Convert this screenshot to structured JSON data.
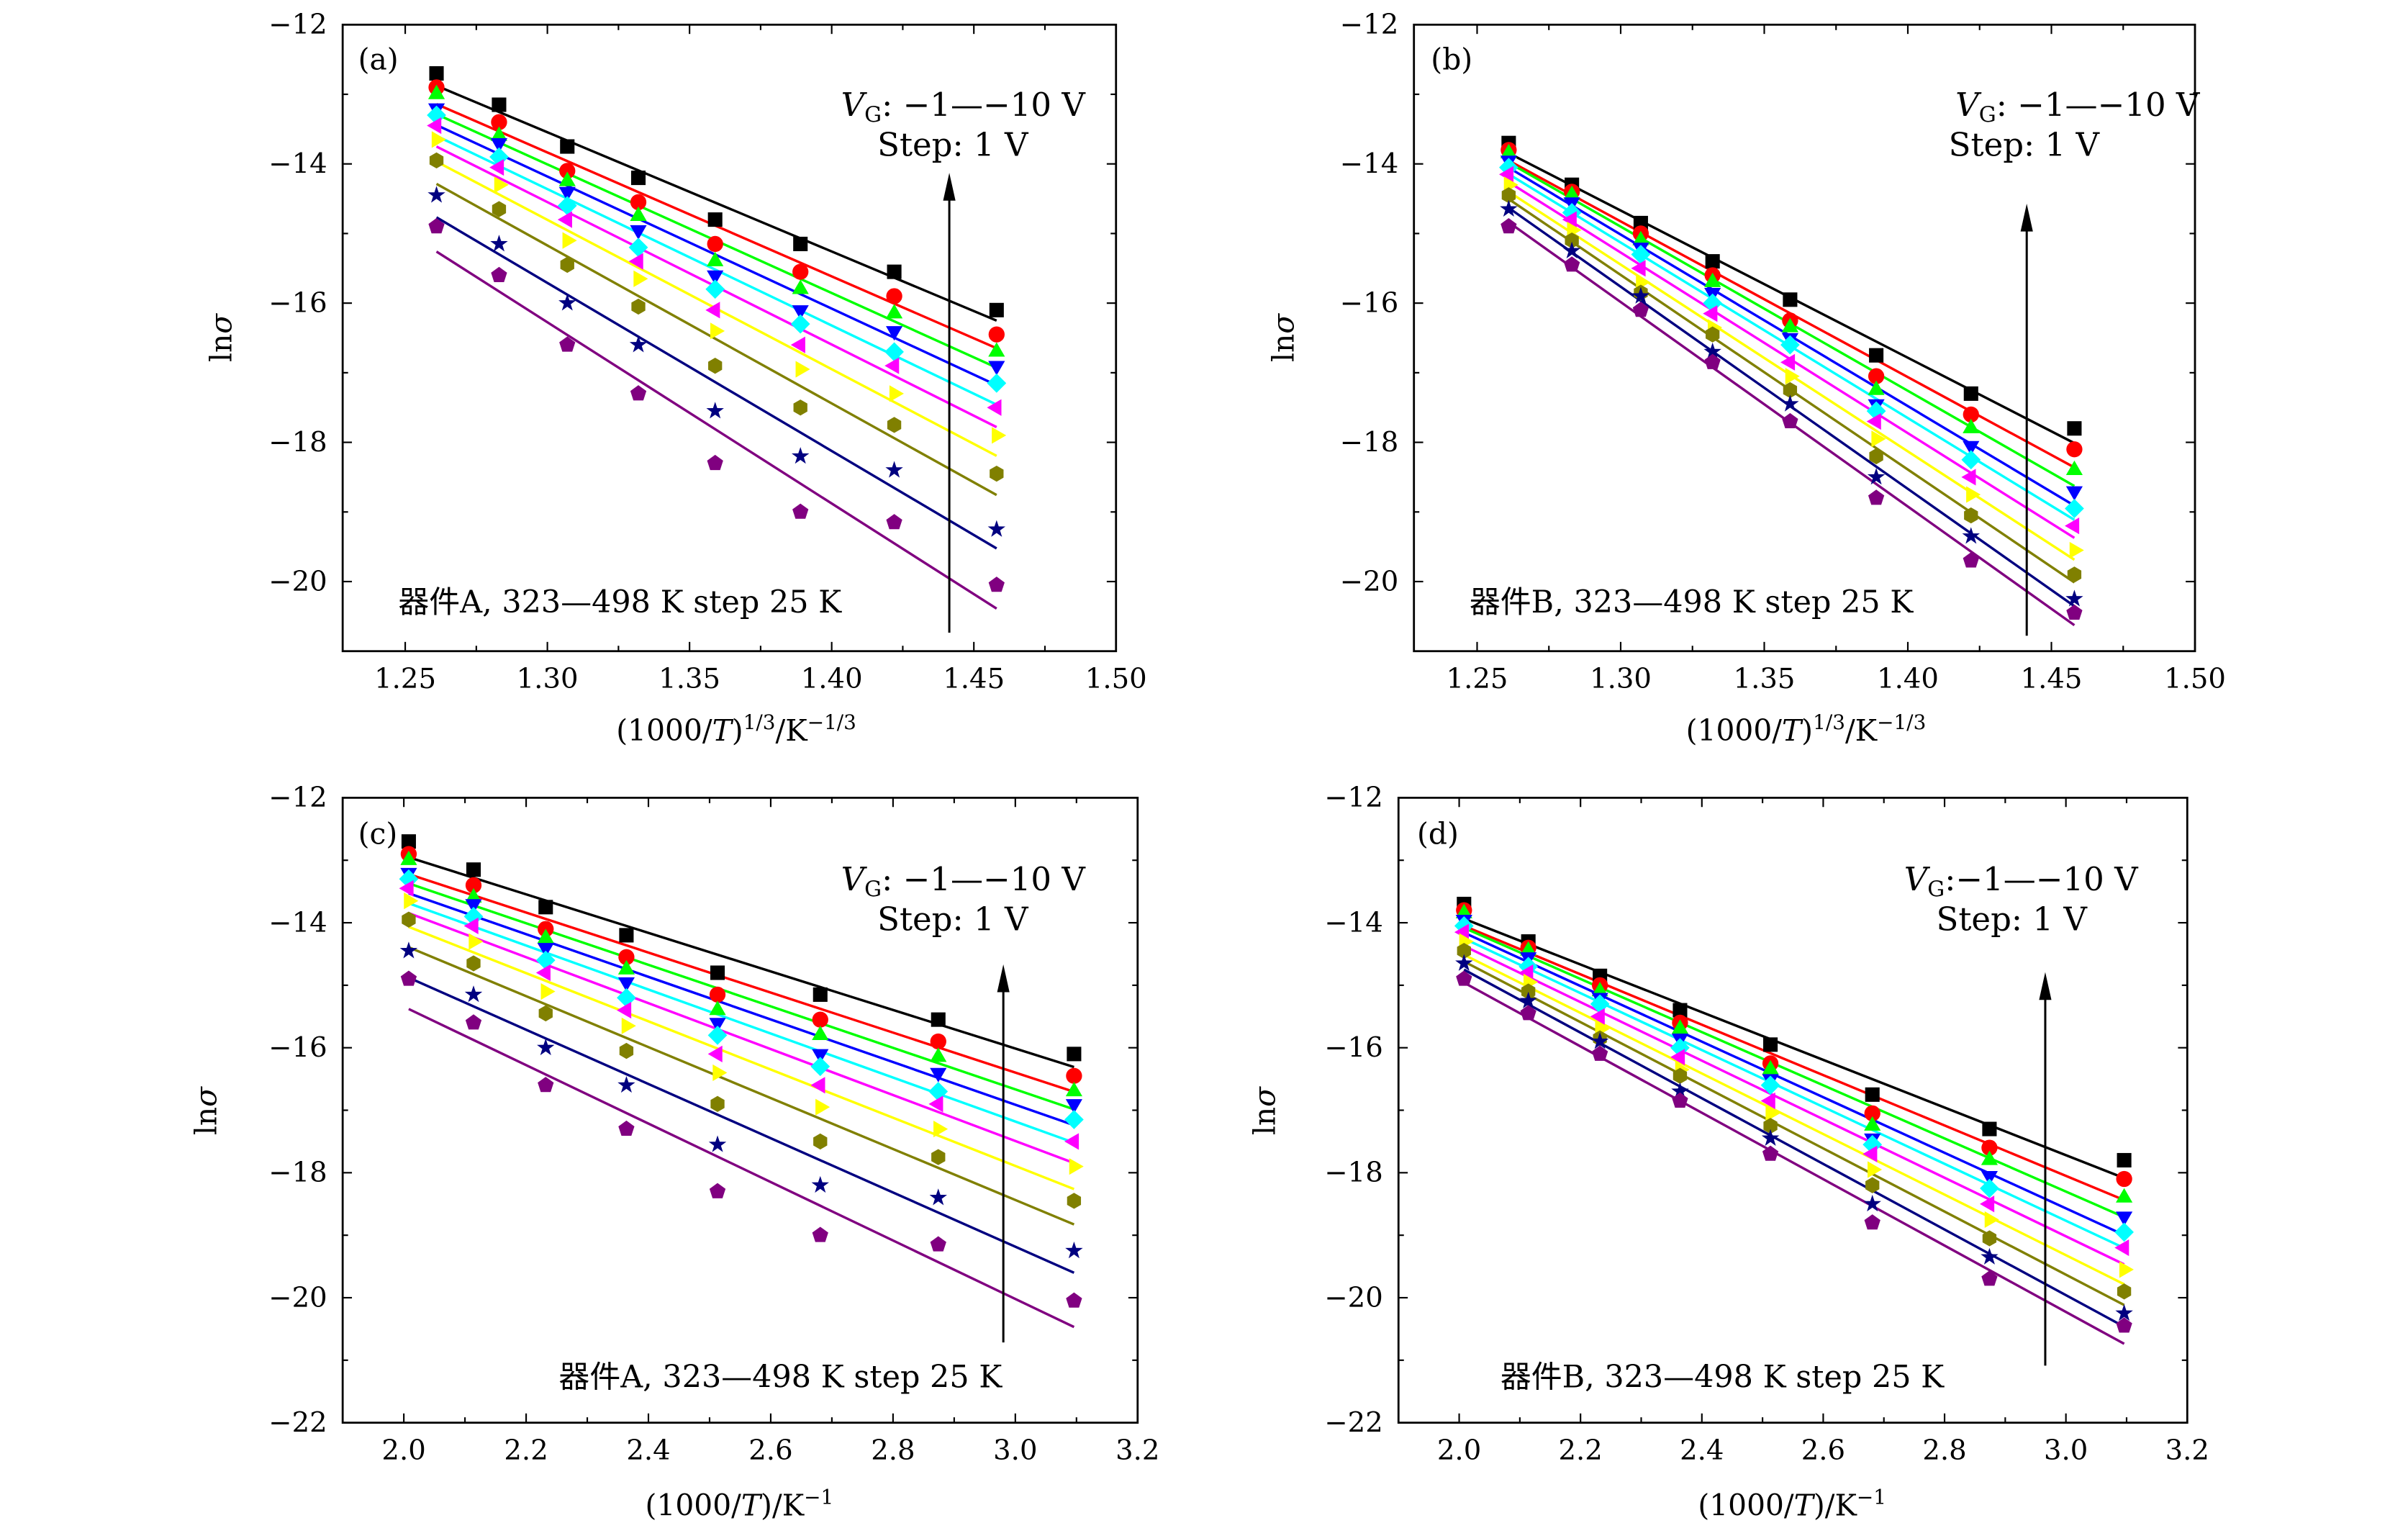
{
  "chart_data": [
    {
      "panel_label": "(a)",
      "type": "scatter",
      "fit": "linear",
      "ylabel": {
        "main": "ln",
        "italic": "σ"
      },
      "xlabel": {
        "pre": "(1000/",
        "italic": "T",
        "mid": ")",
        "sup1": "1/3",
        "post": "/K",
        "sup2": "−1/3"
      },
      "xlim": [
        1.228,
        1.5
      ],
      "ylim": [
        -21,
        -12
      ],
      "xticks": [
        1.25,
        1.3,
        1.35,
        1.4,
        1.45,
        1.5
      ],
      "xtick_labels": [
        "1.25",
        "1.30",
        "1.35",
        "1.40",
        "1.45",
        "1.50"
      ],
      "yticks": [
        -12,
        -14,
        -16,
        -18,
        -20
      ],
      "ytick_labels": [
        "−12",
        "−14",
        "−16",
        "−18",
        "−20"
      ],
      "annotation_vg": {
        "v": "V",
        "sub": "G",
        "rest": ": −1—−10 V"
      },
      "annotation_step": "Step: 1 V",
      "annotation_device": "器件A, 323—498 K step 25 K",
      "x": [
        1.261,
        1.283,
        1.307,
        1.332,
        1.359,
        1.389,
        1.422,
        1.458
      ],
      "series": [
        {
          "marker": "square",
          "color": "#000000",
          "values": [
            -12.7,
            -13.15,
            -13.75,
            -14.2,
            -14.8,
            -15.15,
            -15.55,
            -16.1
          ]
        },
        {
          "marker": "circle",
          "color": "#ff0000",
          "values": [
            -12.9,
            -13.4,
            -14.1,
            -14.55,
            -15.15,
            -15.55,
            -15.9,
            -16.45
          ]
        },
        {
          "marker": "triangle-up",
          "color": "#00ff00",
          "values": [
            -13.0,
            -13.6,
            -14.25,
            -14.75,
            -15.4,
            -15.8,
            -16.15,
            -16.7
          ]
        },
        {
          "marker": "triangle-down",
          "color": "#0000ff",
          "values": [
            -13.2,
            -13.7,
            -14.4,
            -14.95,
            -15.6,
            -16.1,
            -16.4,
            -16.9
          ]
        },
        {
          "marker": "diamond",
          "color": "#00ffff",
          "values": [
            -13.3,
            -13.9,
            -14.6,
            -15.2,
            -15.8,
            -16.3,
            -16.7,
            -17.15
          ]
        },
        {
          "marker": "triangle-left",
          "color": "#ff00ff",
          "values": [
            -13.45,
            -14.05,
            -14.8,
            -15.4,
            -16.1,
            -16.6,
            -16.9,
            -17.5
          ]
        },
        {
          "marker": "triangle-right",
          "color": "#ffff00",
          "values": [
            -13.65,
            -14.3,
            -15.1,
            -15.65,
            -16.4,
            -16.95,
            -17.3,
            -17.9
          ]
        },
        {
          "marker": "hexagon",
          "color": "#808000",
          "values": [
            -13.95,
            -14.65,
            -15.45,
            -16.05,
            -16.9,
            -17.5,
            -17.75,
            -18.45
          ]
        },
        {
          "marker": "star",
          "color": "#000080",
          "values": [
            -14.45,
            -15.15,
            -16.0,
            -16.6,
            -17.55,
            -18.2,
            -18.4,
            -19.25
          ]
        },
        {
          "marker": "pentagon",
          "color": "#800080",
          "values": [
            -14.9,
            -15.6,
            -16.6,
            -17.3,
            -18.3,
            -19.0,
            -19.15,
            -20.05
          ]
        }
      ]
    },
    {
      "panel_label": "(b)",
      "type": "scatter",
      "fit": "linear",
      "ylabel": {
        "main": "ln",
        "italic": "σ"
      },
      "xlabel": {
        "pre": "(1000/",
        "italic": "T",
        "mid": ")",
        "sup1": "1/3",
        "post": "/K",
        "sup2": "−1/3"
      },
      "xlim": [
        1.228,
        1.5
      ],
      "ylim": [
        -21,
        -12
      ],
      "xticks": [
        1.25,
        1.3,
        1.35,
        1.4,
        1.45,
        1.5
      ],
      "xtick_labels": [
        "1.25",
        "1.30",
        "1.35",
        "1.40",
        "1.45",
        "1.50"
      ],
      "yticks": [
        -12,
        -14,
        -16,
        -18,
        -20
      ],
      "ytick_labels": [
        "−12",
        "−14",
        "−16",
        "−18",
        "−20"
      ],
      "annotation_vg": {
        "v": "V",
        "sub": "G",
        "rest": ": −1—−10 V"
      },
      "annotation_step": "Step: 1 V",
      "annotation_device": "器件B, 323—498 K step 25 K",
      "x": [
        1.261,
        1.283,
        1.307,
        1.332,
        1.359,
        1.389,
        1.422,
        1.458
      ],
      "series": [
        {
          "marker": "square",
          "color": "#000000",
          "values": [
            -13.7,
            -14.3,
            -14.85,
            -15.4,
            -15.95,
            -16.75,
            -17.3,
            -17.8
          ]
        },
        {
          "marker": "circle",
          "color": "#ff0000",
          "values": [
            -13.8,
            -14.4,
            -15.0,
            -15.6,
            -16.25,
            -17.05,
            -17.6,
            -18.1
          ]
        },
        {
          "marker": "triangle-up",
          "color": "#00ff00",
          "values": [
            -13.85,
            -14.45,
            -15.1,
            -15.7,
            -16.35,
            -17.25,
            -17.8,
            -18.4
          ]
        },
        {
          "marker": "triangle-down",
          "color": "#0000ff",
          "values": [
            -13.95,
            -14.55,
            -15.2,
            -15.85,
            -16.5,
            -17.45,
            -18.05,
            -18.7
          ]
        },
        {
          "marker": "diamond",
          "color": "#00ffff",
          "values": [
            -14.05,
            -14.7,
            -15.3,
            -16.0,
            -16.6,
            -17.55,
            -18.25,
            -18.95
          ]
        },
        {
          "marker": "triangle-left",
          "color": "#ff00ff",
          "values": [
            -14.15,
            -14.8,
            -15.5,
            -16.15,
            -16.85,
            -17.7,
            -18.5,
            -19.2
          ]
        },
        {
          "marker": "triangle-right",
          "color": "#ffff00",
          "values": [
            -14.3,
            -14.95,
            -15.7,
            -16.35,
            -17.05,
            -17.95,
            -18.75,
            -19.55
          ]
        },
        {
          "marker": "hexagon",
          "color": "#808000",
          "values": [
            -14.45,
            -15.1,
            -15.85,
            -16.45,
            -17.25,
            -18.2,
            -19.05,
            -19.9
          ]
        },
        {
          "marker": "star",
          "color": "#000080",
          "values": [
            -14.65,
            -15.25,
            -15.9,
            -16.7,
            -17.45,
            -18.5,
            -19.35,
            -20.25
          ]
        },
        {
          "marker": "pentagon",
          "color": "#800080",
          "values": [
            -14.9,
            -15.45,
            -16.1,
            -16.85,
            -17.7,
            -18.8,
            -19.7,
            -20.45
          ]
        }
      ]
    },
    {
      "panel_label": "(c)",
      "type": "scatter",
      "fit": "linear",
      "ylabel": {
        "main": "ln",
        "italic": "σ"
      },
      "xlabel": {
        "pre": "(1000/",
        "italic": "T",
        "mid": ")",
        "sup1": "",
        "post": "/K",
        "sup2": "−1"
      },
      "xlim": [
        1.9,
        3.2
      ],
      "ylim": [
        -22,
        -12
      ],
      "xticks": [
        2.0,
        2.2,
        2.4,
        2.6,
        2.8,
        3.0,
        3.2
      ],
      "xtick_labels": [
        "2.0",
        "2.2",
        "2.4",
        "2.6",
        "2.8",
        "3.0",
        "3.2"
      ],
      "yticks": [
        -12,
        -14,
        -16,
        -18,
        -20,
        -22
      ],
      "ytick_labels": [
        "−12",
        "−14",
        "−16",
        "−18",
        "−20",
        "−22"
      ],
      "annotation_vg": {
        "v": "V",
        "sub": "G",
        "rest": ": −1—−10 V"
      },
      "annotation_step": "Step: 1 V",
      "annotation_device": "器件A, 323—498 K step 25 K",
      "x": [
        2.008,
        2.114,
        2.232,
        2.364,
        2.513,
        2.681,
        2.874,
        3.096
      ],
      "series": [
        {
          "marker": "square",
          "color": "#000000",
          "values": [
            -12.7,
            -13.15,
            -13.75,
            -14.2,
            -14.8,
            -15.15,
            -15.55,
            -16.1
          ]
        },
        {
          "marker": "circle",
          "color": "#ff0000",
          "values": [
            -12.9,
            -13.4,
            -14.1,
            -14.55,
            -15.15,
            -15.55,
            -15.9,
            -16.45
          ]
        },
        {
          "marker": "triangle-up",
          "color": "#00ff00",
          "values": [
            -13.0,
            -13.6,
            -14.25,
            -14.75,
            -15.4,
            -15.8,
            -16.15,
            -16.7
          ]
        },
        {
          "marker": "triangle-down",
          "color": "#0000ff",
          "values": [
            -13.2,
            -13.7,
            -14.4,
            -14.95,
            -15.6,
            -16.1,
            -16.4,
            -16.9
          ]
        },
        {
          "marker": "diamond",
          "color": "#00ffff",
          "values": [
            -13.3,
            -13.9,
            -14.6,
            -15.2,
            -15.8,
            -16.3,
            -16.7,
            -17.15
          ]
        },
        {
          "marker": "triangle-left",
          "color": "#ff00ff",
          "values": [
            -13.45,
            -14.05,
            -14.8,
            -15.4,
            -16.1,
            -16.6,
            -16.9,
            -17.5
          ]
        },
        {
          "marker": "triangle-right",
          "color": "#ffff00",
          "values": [
            -13.65,
            -14.3,
            -15.1,
            -15.65,
            -16.4,
            -16.95,
            -17.3,
            -17.9
          ]
        },
        {
          "marker": "hexagon",
          "color": "#808000",
          "values": [
            -13.95,
            -14.65,
            -15.45,
            -16.05,
            -16.9,
            -17.5,
            -17.75,
            -18.45
          ]
        },
        {
          "marker": "star",
          "color": "#000080",
          "values": [
            -14.45,
            -15.15,
            -16.0,
            -16.6,
            -17.55,
            -18.2,
            -18.4,
            -19.25
          ]
        },
        {
          "marker": "pentagon",
          "color": "#800080",
          "values": [
            -14.9,
            -15.6,
            -16.6,
            -17.3,
            -18.3,
            -19.0,
            -19.15,
            -20.05
          ]
        }
      ]
    },
    {
      "panel_label": "(d)",
      "type": "scatter",
      "fit": "linear",
      "ylabel": {
        "main": "ln",
        "italic": "σ"
      },
      "xlabel": {
        "pre": "(1000/",
        "italic": "T",
        "mid": ")",
        "sup1": "",
        "post": "/K",
        "sup2": "−1"
      },
      "xlim": [
        1.9,
        3.2
      ],
      "ylim": [
        -22,
        -12
      ],
      "xticks": [
        2.0,
        2.2,
        2.4,
        2.6,
        2.8,
        3.0,
        3.2
      ],
      "xtick_labels": [
        "2.0",
        "2.2",
        "2.4",
        "2.6",
        "2.8",
        "3.0",
        "3.2"
      ],
      "yticks": [
        -12,
        -14,
        -16,
        -18,
        -20,
        -22
      ],
      "ytick_labels": [
        "−12",
        "−14",
        "−16",
        "−18",
        "−20",
        "−22"
      ],
      "annotation_vg": {
        "v": "V",
        "sub": "G",
        "rest": ":−1—−10 V"
      },
      "annotation_step": "Step: 1 V",
      "annotation_device": "器件B, 323—498 K step 25 K",
      "x": [
        2.008,
        2.114,
        2.232,
        2.364,
        2.513,
        2.681,
        2.874,
        3.096
      ],
      "series": [
        {
          "marker": "square",
          "color": "#000000",
          "values": [
            -13.7,
            -14.3,
            -14.85,
            -15.4,
            -15.95,
            -16.75,
            -17.3,
            -17.8
          ]
        },
        {
          "marker": "circle",
          "color": "#ff0000",
          "values": [
            -13.8,
            -14.4,
            -15.0,
            -15.6,
            -16.25,
            -17.05,
            -17.6,
            -18.1
          ]
        },
        {
          "marker": "triangle-up",
          "color": "#00ff00",
          "values": [
            -13.85,
            -14.45,
            -15.1,
            -15.7,
            -16.35,
            -17.25,
            -17.8,
            -18.4
          ]
        },
        {
          "marker": "triangle-down",
          "color": "#0000ff",
          "values": [
            -13.95,
            -14.55,
            -15.2,
            -15.85,
            -16.5,
            -17.45,
            -18.05,
            -18.7
          ]
        },
        {
          "marker": "diamond",
          "color": "#00ffff",
          "values": [
            -14.05,
            -14.7,
            -15.3,
            -16.0,
            -16.6,
            -17.55,
            -18.25,
            -18.95
          ]
        },
        {
          "marker": "triangle-left",
          "color": "#ff00ff",
          "values": [
            -14.15,
            -14.8,
            -15.5,
            -16.15,
            -16.85,
            -17.7,
            -18.5,
            -19.2
          ]
        },
        {
          "marker": "triangle-right",
          "color": "#ffff00",
          "values": [
            -14.3,
            -14.95,
            -15.7,
            -16.35,
            -17.05,
            -17.95,
            -18.75,
            -19.55
          ]
        },
        {
          "marker": "hexagon",
          "color": "#808000",
          "values": [
            -14.45,
            -15.1,
            -15.85,
            -16.45,
            -17.25,
            -18.2,
            -19.05,
            -19.9
          ]
        },
        {
          "marker": "star",
          "color": "#000080",
          "values": [
            -14.65,
            -15.25,
            -15.9,
            -16.7,
            -17.45,
            -18.5,
            -19.35,
            -20.25
          ]
        },
        {
          "marker": "pentagon",
          "color": "#800080",
          "values": [
            -14.9,
            -15.45,
            -16.1,
            -16.85,
            -17.7,
            -18.8,
            -19.7,
            -20.45
          ]
        }
      ]
    }
  ]
}
